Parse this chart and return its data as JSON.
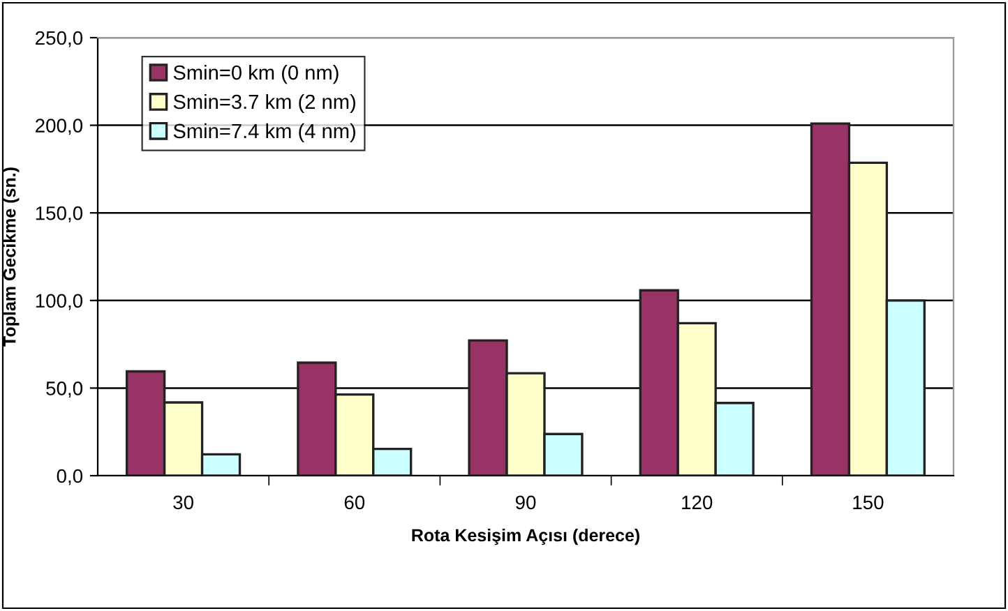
{
  "chart_data": {
    "type": "bar",
    "xlabel": "Rota Kesişim Açısı (derece)",
    "ylabel": "Toplam Gecikme (sn.)",
    "categories": [
      "30",
      "60",
      "90",
      "120",
      "150"
    ],
    "series": [
      {
        "name": "Smin=0 km (0 nm)",
        "color": "#993366",
        "values": [
          59.5,
          64.5,
          77.2,
          105.8,
          201.0
        ]
      },
      {
        "name": "Smin=3.7 km (2 nm)",
        "color": "#ffffcc",
        "values": [
          41.8,
          46.3,
          58.5,
          87.0,
          178.6
        ]
      },
      {
        "name": "Smin=7.4 km (4 nm)",
        "color": "#ccffff",
        "values": [
          12.2,
          15.3,
          23.8,
          41.5,
          100.0
        ]
      }
    ],
    "ylim": [
      0,
      250
    ],
    "yticks": [
      {
        "value": 0,
        "label": "0,0"
      },
      {
        "value": 50,
        "label": "50,0"
      },
      {
        "value": 100,
        "label": "100,0"
      },
      {
        "value": 150,
        "label": "150,0"
      },
      {
        "value": 200,
        "label": "200,0"
      },
      {
        "value": 250,
        "label": "250,0"
      }
    ],
    "grid": "y",
    "legend": "top left"
  }
}
